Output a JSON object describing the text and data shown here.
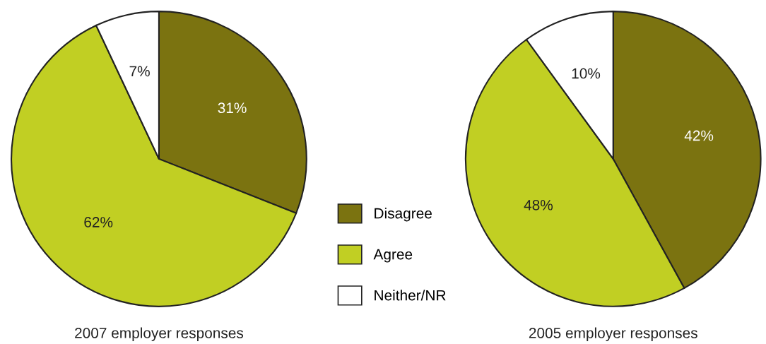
{
  "chart_data": [
    {
      "type": "pie",
      "title": "2007 employer responses",
      "categories": [
        "Disagree",
        "Agree",
        "Neither/NR"
      ],
      "values": [
        31,
        62,
        7
      ],
      "colors": [
        "#7b7310",
        "#c1cf23",
        "#ffffff"
      ],
      "value_labels": [
        "31%",
        "62%",
        "7%"
      ],
      "legend": "right"
    },
    {
      "type": "pie",
      "title": "2005 employer responses",
      "categories": [
        null,
        null,
        null
      ],
      "values": [
        42,
        48,
        10
      ],
      "colors": [
        "#7b7310",
        "#c1cf23",
        "#ffffff"
      ],
      "value_labels": [
        "42%",
        "48%",
        "10%"
      ]
    }
  ]
}
